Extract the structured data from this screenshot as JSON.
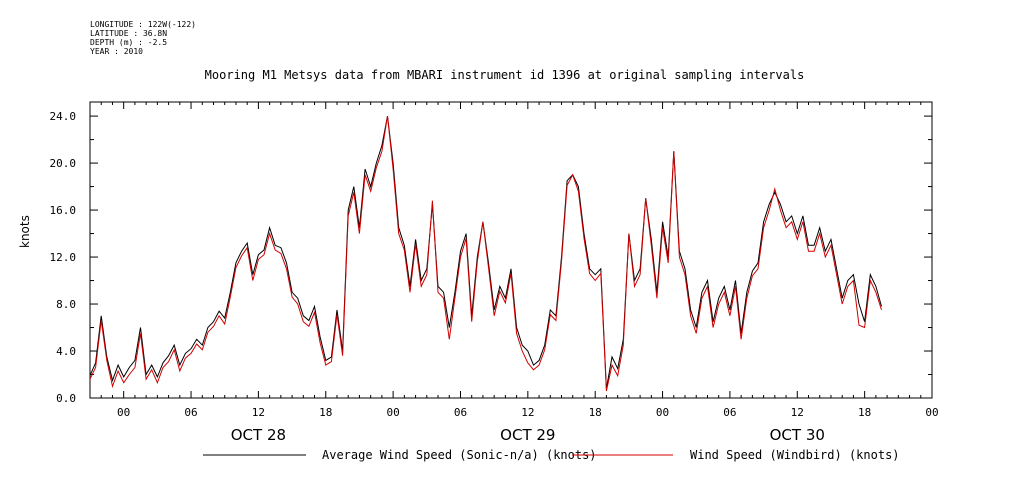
{
  "meta": {
    "longitude": "LONGITUDE : 122W(-122)",
    "latitude": "LATITUDE : 36.8N",
    "depth": "DEPTH (m) : -2.5",
    "year": "YEAR : 2010"
  },
  "colors": {
    "series1": "#000000",
    "series2": "#d00000"
  },
  "chart_data": {
    "type": "line",
    "title": "Mooring M1 Metsys data from MBARI instrument id 1396 at original sampling intervals",
    "ylabel": "knots",
    "xlabel": "",
    "ylim": [
      0,
      25.2
    ],
    "xlim_hours": [
      -3,
      72
    ],
    "yticks": [
      "0.0",
      "4.0",
      "8.0",
      "12.0",
      "16.0",
      "20.0",
      "24.0"
    ],
    "xticks": [
      {
        "h": 0,
        "label": "00"
      },
      {
        "h": 6,
        "label": "06"
      },
      {
        "h": 12,
        "label": "12"
      },
      {
        "h": 18,
        "label": "18"
      },
      {
        "h": 24,
        "label": "00"
      },
      {
        "h": 30,
        "label": "06"
      },
      {
        "h": 36,
        "label": "12"
      },
      {
        "h": 42,
        "label": "18"
      },
      {
        "h": 48,
        "label": "00"
      },
      {
        "h": 54,
        "label": "06"
      },
      {
        "h": 60,
        "label": "12"
      },
      {
        "h": 66,
        "label": "18"
      },
      {
        "h": 72,
        "label": "00"
      }
    ],
    "date_labels": [
      {
        "h": 12,
        "label": "OCT 28"
      },
      {
        "h": 36,
        "label": "OCT 29"
      },
      {
        "h": 60,
        "label": "OCT 30"
      }
    ],
    "x_hours": [
      -3,
      -2.5,
      -2,
      -1.5,
      -1,
      -0.5,
      0,
      0.5,
      1,
      1.5,
      2,
      2.5,
      3,
      3.5,
      4,
      4.5,
      5,
      5.5,
      6,
      6.5,
      7,
      7.5,
      8,
      8.5,
      9,
      9.5,
      10,
      10.5,
      11,
      11.5,
      12,
      12.5,
      13,
      13.5,
      14,
      14.5,
      15,
      15.5,
      16,
      16.5,
      17,
      17.5,
      18,
      18.5,
      19,
      19.5,
      20,
      20.5,
      21,
      21.5,
      22,
      22.5,
      23,
      23.5,
      24,
      24.5,
      25,
      25.5,
      26,
      26.5,
      27,
      27.5,
      28,
      28.5,
      29,
      29.5,
      30,
      30.5,
      31,
      31.5,
      32,
      32.5,
      33,
      33.5,
      34,
      34.5,
      35,
      35.5,
      36,
      36.5,
      37,
      37.5,
      38,
      38.5,
      39,
      39.5,
      40,
      40.5,
      41,
      41.5,
      42,
      42.5,
      43,
      43.5,
      44,
      44.5,
      45,
      45.5,
      46,
      46.5,
      47,
      47.5,
      48,
      48.5,
      49,
      49.5,
      50,
      50.5,
      51,
      51.5,
      52,
      52.5,
      53,
      53.5,
      54,
      54.5,
      55,
      55.5,
      56,
      56.5,
      57,
      57.5,
      58,
      58.5,
      59,
      59.5,
      60,
      60.5,
      61,
      61.5,
      62,
      62.5,
      63,
      63.5,
      64,
      64.5,
      65,
      65.5,
      66,
      66.5,
      67,
      67.5,
      68,
      68.5,
      69,
      69.5,
      70,
      70.5,
      71,
      71.5,
      72
    ],
    "series": [
      {
        "name": "Average Wind Speed (Sonic-n/a) (knots)",
        "values": [
          1.9,
          3.0,
          7.0,
          3.5,
          1.5,
          2.8,
          1.8,
          2.6,
          3.2,
          6.0,
          2.0,
          2.8,
          1.8,
          3.0,
          3.6,
          4.5,
          2.8,
          3.8,
          4.2,
          5.0,
          4.5,
          6.0,
          6.5,
          7.4,
          6.8,
          9.0,
          11.5,
          12.5,
          13.2,
          10.5,
          12.2,
          12.6,
          14.5,
          13.0,
          12.8,
          11.5,
          9.0,
          8.5,
          7.0,
          6.6,
          7.8,
          5.2,
          3.2,
          3.5,
          7.5,
          4.0,
          16.0,
          18.0,
          14.5,
          19.5,
          18.0,
          20.0,
          21.5,
          24.0,
          20.0,
          14.5,
          13.0,
          9.5,
          13.5,
          10.0,
          11.0,
          16.5,
          9.5,
          9.0,
          6.0,
          9.0,
          12.5,
          14.0,
          7.0,
          12.0,
          15.0,
          11.5,
          7.5,
          9.5,
          8.5,
          11.0,
          6.0,
          4.5,
          4.0,
          2.8,
          3.2,
          4.5,
          7.5,
          7.0,
          12.0,
          18.5,
          19.0,
          18.0,
          14.0,
          11.0,
          10.5,
          11.0,
          0.8,
          3.5,
          2.5,
          5.0,
          14.0,
          10.0,
          11.0,
          17.0,
          13.5,
          9.0,
          15.0,
          12.0,
          21.0,
          12.5,
          11.0,
          7.5,
          6.0,
          9.0,
          10.0,
          6.5,
          8.5,
          9.5,
          7.5,
          10.0,
          5.5,
          9.0,
          10.8,
          11.5,
          15.0,
          16.5,
          17.5,
          16.5,
          15.0,
          15.5,
          14.0,
          15.5,
          13.0,
          13.0,
          14.5,
          12.5,
          13.5,
          11.0,
          8.5,
          10.0,
          10.5,
          8.0,
          6.5,
          10.5,
          9.5,
          7.8
        ]
      },
      {
        "name": "Wind Speed (Windbird) (knots)",
        "values": [
          1.6,
          2.6,
          6.6,
          3.2,
          1.0,
          2.3,
          1.3,
          2.0,
          2.6,
          5.5,
          1.6,
          2.4,
          1.3,
          2.6,
          3.1,
          4.1,
          2.3,
          3.4,
          3.8,
          4.6,
          4.1,
          5.6,
          6.1,
          7.0,
          6.3,
          8.6,
          11.1,
          12.1,
          12.8,
          10.0,
          11.8,
          12.2,
          14.0,
          12.6,
          12.3,
          11.0,
          8.6,
          8.0,
          6.5,
          6.1,
          7.3,
          4.7,
          2.8,
          3.1,
          7.1,
          3.6,
          15.5,
          17.5,
          14.0,
          19.0,
          17.6,
          19.6,
          21.0,
          24.0,
          19.5,
          14.0,
          12.6,
          9.0,
          13.1,
          9.5,
          10.5,
          16.8,
          9.0,
          8.5,
          5.0,
          8.5,
          12.0,
          13.6,
          6.5,
          11.6,
          15.0,
          11.1,
          7.0,
          9.1,
          8.1,
          10.6,
          5.5,
          4.0,
          3.0,
          2.4,
          2.8,
          4.1,
          7.1,
          6.6,
          11.6,
          18.1,
          19.0,
          17.6,
          13.6,
          10.6,
          10.0,
          10.6,
          0.6,
          2.8,
          1.9,
          4.5,
          14.0,
          9.5,
          10.5,
          17.0,
          13.0,
          8.5,
          14.5,
          11.5,
          21.0,
          12.0,
          10.5,
          7.0,
          5.5,
          8.5,
          9.5,
          6.0,
          8.0,
          9.0,
          7.0,
          9.5,
          5.0,
          8.5,
          10.4,
          11.0,
          14.5,
          16.0,
          17.8,
          16.0,
          14.5,
          15.0,
          13.5,
          15.0,
          12.5,
          12.5,
          14.0,
          12.0,
          13.0,
          10.5,
          8.0,
          9.5,
          10.0,
          6.2,
          6.0,
          10.0,
          9.0,
          7.5
        ]
      }
    ],
    "legend": {
      "placement": "bottom"
    },
    "grid": false
  }
}
